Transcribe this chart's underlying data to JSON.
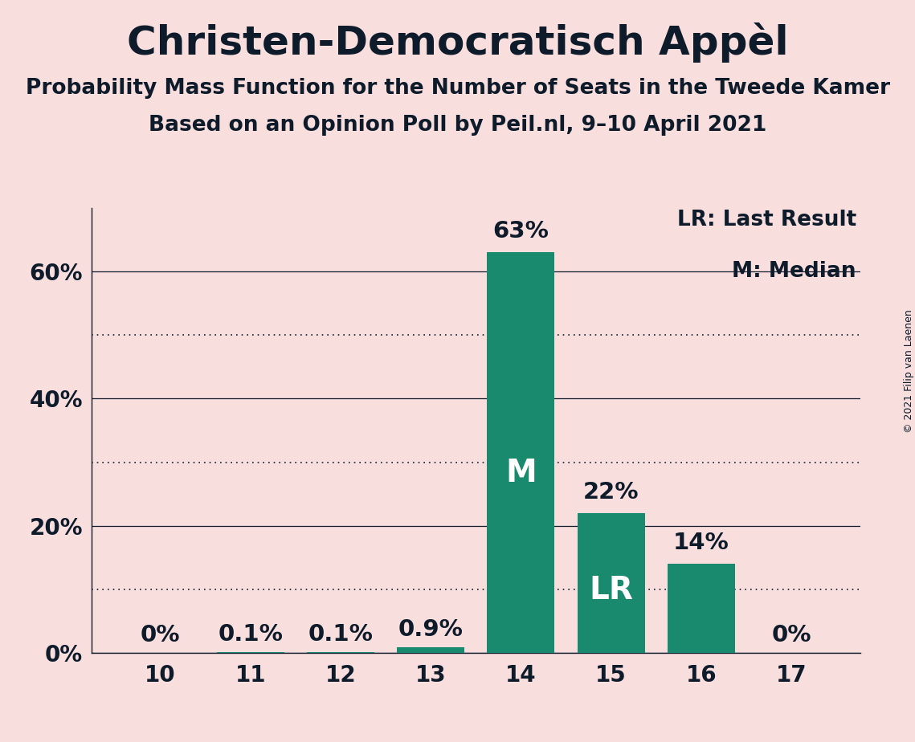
{
  "title": "Christen-Democratisch Appèl",
  "subtitle1": "Probability Mass Function for the Number of Seats in the Tweede Kamer",
  "subtitle2": "Based on an Opinion Poll by Peil.nl, 9–10 April 2021",
  "copyright": "© 2021 Filip van Laenen",
  "categories": [
    10,
    11,
    12,
    13,
    14,
    15,
    16,
    17
  ],
  "values": [
    0.0,
    0.1,
    0.1,
    0.9,
    63.0,
    22.0,
    14.0,
    0.0
  ],
  "bar_color": "#1a8a6e",
  "background_color": "#f9dede",
  "text_color": "#0d1b2a",
  "label_above": [
    "0%",
    "0.1%",
    "0.1%",
    "0.9%",
    "63%",
    "22%",
    "14%",
    "0%"
  ],
  "median_bar": 14,
  "lr_bar": 15,
  "median_label": "M",
  "lr_label": "LR",
  "legend_lr": "LR: Last Result",
  "legend_m": "M: Median",
  "yticks": [
    0,
    20,
    40,
    60
  ],
  "gridlines_dotted": [
    10,
    30,
    50
  ],
  "ymax": 70,
  "title_fontsize": 36,
  "subtitle_fontsize": 19,
  "tick_fontsize": 20,
  "label_fontsize": 21,
  "inside_label_fontsize": 28,
  "legend_fontsize": 19
}
